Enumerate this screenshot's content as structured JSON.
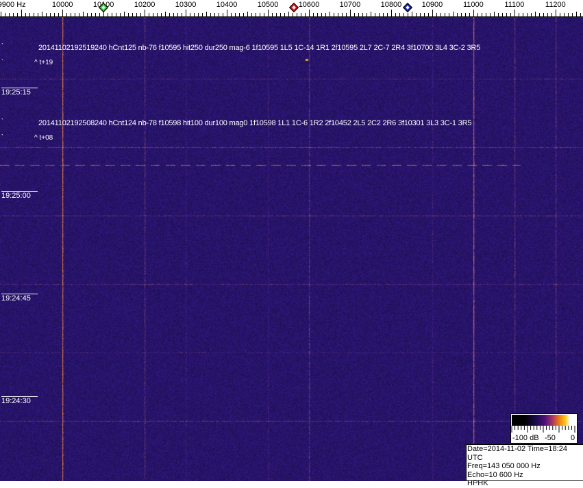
{
  "chart_data": {
    "type": "heatmap",
    "xlabel_unit": "Hz",
    "x_ticks": [
      "9900 Hz",
      "10000",
      "10100",
      "10200",
      "10300",
      "10400",
      "10500",
      "10600",
      "10700",
      "10800",
      "10900",
      "11000",
      "11100",
      "11200"
    ],
    "x_tick_values": [
      9900,
      10000,
      10100,
      10200,
      10300,
      10400,
      10500,
      10600,
      10700,
      10800,
      10900,
      11000,
      11100,
      11200
    ],
    "xlim": [
      9848,
      11267
    ],
    "time_labels": [
      "19:25:15",
      "19:25:00",
      "19:24:45",
      "19:24:30"
    ],
    "markers": [
      {
        "freq": 10100,
        "color": "#22cc22"
      },
      {
        "freq": 10563,
        "color": "#dd1111"
      },
      {
        "freq": 10840,
        "color": "#1122cc"
      }
    ],
    "carrier_lines_hz": [
      10000,
      11000
    ],
    "colormap": {
      "min_label": "-100 dB",
      "mid_label": "-50",
      "max_label": "0",
      "range_db": [
        -100,
        0
      ]
    },
    "background_color": "#2a1a78"
  },
  "events": [
    {
      "text": "20141102192519240 hCnt125 nb-76 f10595 hit250 dur250 mag-6 1f10595 1L5 1C-14 1R1 2f10595 2L7 2C-7 2R4 3f10700 3L4 3C-2 3R5",
      "offset": "^ t+19"
    },
    {
      "text": "20141102192508240 hCnt124 nb-78 f10598 hit100 dur100 mag0 1f10598 1L1 1C-6 1R2 2f10452 2L5 2C2 2R6 3f10301 3L3 3C-1 3R5",
      "offset": "^ t+08"
    }
  ],
  "info": {
    "line1": "Date=2014-11-02 Time=18:24 UTC",
    "line2": "Freq=143 050 000 Hz",
    "line3": "Echo=10 600 Hz",
    "line4": "HPHK"
  }
}
